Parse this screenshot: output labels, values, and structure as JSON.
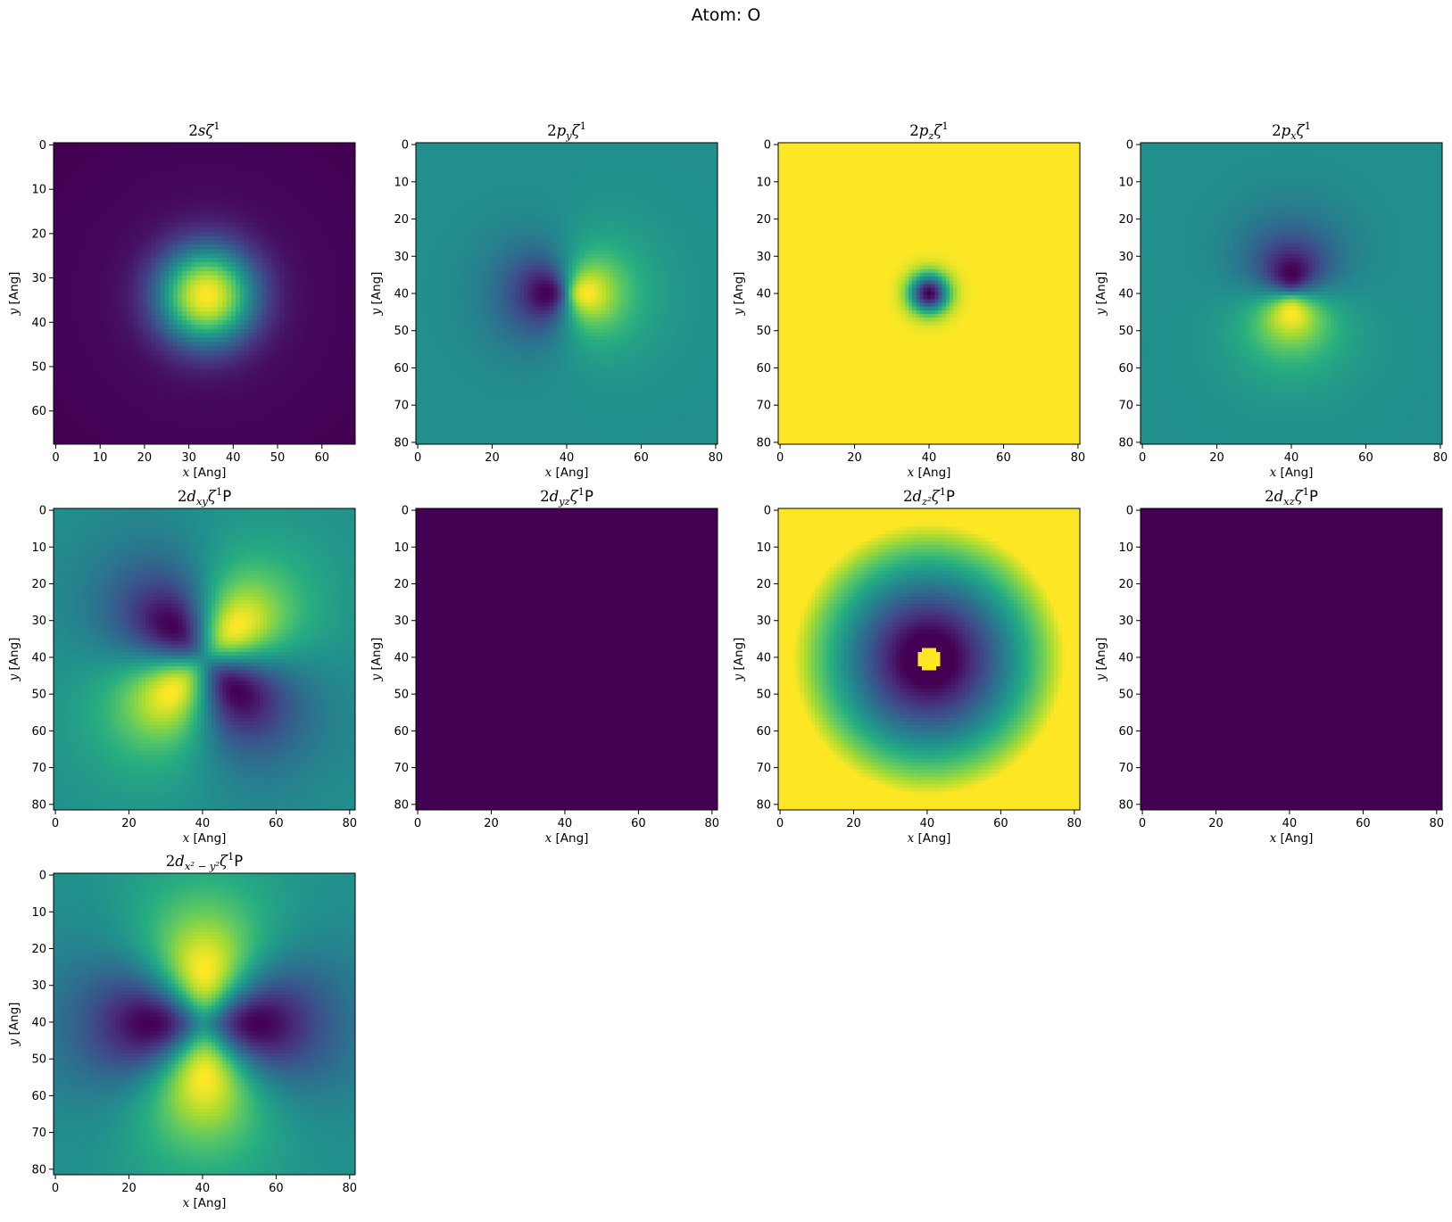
{
  "figure": {
    "suptitle": "Atom: O"
  },
  "colormap": {
    "name": "viridis",
    "low": "#440154",
    "mid": "#21918c",
    "high": "#fde725"
  },
  "chart_data": [
    {
      "type": "heatmap",
      "orbital": "2s",
      "title": {
        "main": "2s",
        "math": "ζ",
        "sup": "1",
        "suffix": ""
      },
      "n": 68,
      "xticks": [
        0,
        10,
        20,
        30,
        40,
        50,
        60
      ],
      "yticks": [
        0,
        10,
        20,
        30,
        40,
        50,
        60
      ],
      "xlabel": {
        "var": "x",
        "unit": " [Ang]"
      },
      "ylabel": {
        "var": "y",
        "unit": " [Ang]"
      },
      "show_xlabel": true
    },
    {
      "type": "heatmap",
      "orbital": "py",
      "title": {
        "main": "2p",
        "sub": "y",
        "math": "ζ",
        "sup": "1",
        "suffix": ""
      },
      "n": 81,
      "xticks": [
        0,
        20,
        40,
        60,
        80
      ],
      "yticks": [
        0,
        10,
        20,
        30,
        40,
        50,
        60,
        70,
        80
      ],
      "xlabel": {
        "var": "x",
        "unit": " [Ang]"
      },
      "ylabel": {
        "var": "y",
        "unit": " [Ang]"
      },
      "show_xlabel": true
    },
    {
      "type": "heatmap",
      "orbital": "pz",
      "title": {
        "main": "2p",
        "sub": "z",
        "math": "ζ",
        "sup": "1",
        "suffix": ""
      },
      "n": 81,
      "xticks": [
        0,
        20,
        40,
        60,
        80
      ],
      "yticks": [
        0,
        10,
        20,
        30,
        40,
        50,
        60,
        70,
        80
      ],
      "xlabel": {
        "var": "x",
        "unit": " [Ang]"
      },
      "ylabel": {
        "var": "y",
        "unit": " [Ang]"
      },
      "show_xlabel": true
    },
    {
      "type": "heatmap",
      "orbital": "px",
      "title": {
        "main": "2p",
        "sub": "x",
        "math": "ζ",
        "sup": "1",
        "suffix": ""
      },
      "n": 81,
      "xticks": [
        0,
        20,
        40,
        60,
        80
      ],
      "yticks": [
        0,
        10,
        20,
        30,
        40,
        50,
        60,
        70,
        80
      ],
      "xlabel": {
        "var": "x",
        "unit": " [Ang]"
      },
      "ylabel": {
        "var": "y",
        "unit": " [Ang]"
      },
      "show_xlabel": true
    },
    {
      "type": "heatmap",
      "orbital": "dxy",
      "title": {
        "main": "2d",
        "sub": "xy",
        "math": "ζ",
        "sup": "1",
        "suffix": "P"
      },
      "n": 82,
      "xticks": [
        0,
        20,
        40,
        60,
        80
      ],
      "yticks": [
        0,
        10,
        20,
        30,
        40,
        50,
        60,
        70,
        80
      ],
      "xlabel": {
        "var": "x",
        "unit": " [Ang]"
      },
      "ylabel": {
        "var": "y",
        "unit": " [Ang]"
      },
      "show_xlabel": true
    },
    {
      "type": "heatmap",
      "orbital": "dyz",
      "title": {
        "main": "2d",
        "sub": "yz",
        "math": "ζ",
        "sup": "1",
        "suffix": "P"
      },
      "n": 82,
      "xticks": [
        0,
        20,
        40,
        60,
        80
      ],
      "yticks": [
        0,
        10,
        20,
        30,
        40,
        50,
        60,
        70,
        80
      ],
      "xlabel": {
        "var": "x",
        "unit": " [Ang]"
      },
      "ylabel": {
        "var": "y",
        "unit": " [Ang]"
      },
      "show_xlabel": true
    },
    {
      "type": "heatmap",
      "orbital": "dz2",
      "title": {
        "main": "2d",
        "sub": "z²",
        "math": "ζ",
        "sup": "1",
        "suffix": "P"
      },
      "n": 82,
      "xticks": [
        0,
        20,
        40,
        60,
        80
      ],
      "yticks": [
        0,
        10,
        20,
        30,
        40,
        50,
        60,
        70,
        80
      ],
      "xlabel": {
        "var": "x",
        "unit": " [Ang]"
      },
      "ylabel": {
        "var": "y",
        "unit": " [Ang]"
      },
      "show_xlabel": true
    },
    {
      "type": "heatmap",
      "orbital": "dxz",
      "title": {
        "main": "2d",
        "sub": "xz",
        "math": "ζ",
        "sup": "1",
        "suffix": "P"
      },
      "n": 82,
      "xticks": [
        0,
        20,
        40,
        60,
        80
      ],
      "yticks": [
        0,
        10,
        20,
        30,
        40,
        50,
        60,
        70,
        80
      ],
      "xlabel": {
        "var": "x",
        "unit": " [Ang]"
      },
      "ylabel": {
        "var": "y",
        "unit": " [Ang]"
      },
      "show_xlabel": true
    },
    {
      "type": "heatmap",
      "orbital": "dx2y2",
      "title": {
        "main": "2d",
        "sub": "x² − y²",
        "math": "ζ",
        "sup": "1",
        "suffix": "P"
      },
      "n": 82,
      "xticks": [
        0,
        20,
        40,
        60,
        80
      ],
      "yticks": [
        0,
        10,
        20,
        30,
        40,
        50,
        60,
        70,
        80
      ],
      "xlabel": {
        "var": "x",
        "unit": " [Ang]"
      },
      "ylabel": {
        "var": "y",
        "unit": " [Ang]"
      },
      "show_xlabel": true
    }
  ]
}
